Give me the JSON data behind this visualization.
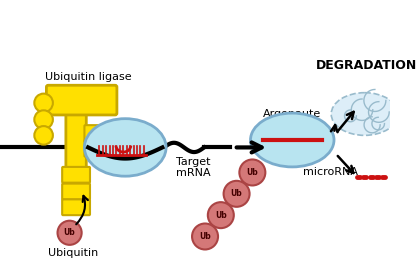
{
  "bg_color": "#ffffff",
  "yellow": "#FFE000",
  "yellow_stroke": "#C8A800",
  "light_blue": "#B8E4F0",
  "light_blue_stroke": "#7AACCC",
  "salmon": "#D47878",
  "salmon_stroke": "#AA4444",
  "red": "#CC1111",
  "label_ubiquitin_ligase": "Ubiquitin ligase",
  "label_target_mrna": "Target\nmRNA",
  "label_ubiquitin": "Ubiquitin",
  "label_argonaute": "Argonaute",
  "label_microrna": "microRNA",
  "label_degradation": "DEGRADATION",
  "label_ub": "Ub"
}
